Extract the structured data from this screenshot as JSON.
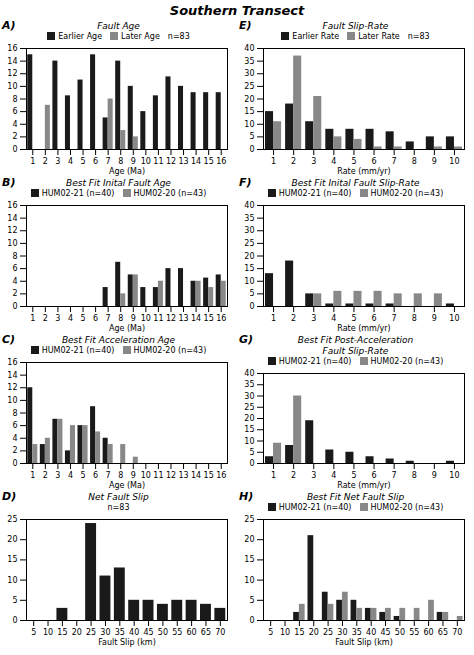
{
  "title": "Southern Transect",
  "chart_data": [
    {
      "type": "bar",
      "panel_label": "A)",
      "title": "Fault Age",
      "xlabel": "Age (Ma)",
      "categories": [
        1,
        2,
        3,
        4,
        5,
        6,
        7,
        8,
        9,
        10,
        11,
        12,
        13,
        14,
        15,
        16
      ],
      "series": [
        {
          "name": "Earlier Age",
          "color": "#1a1a1a",
          "values": [
            15,
            0,
            14,
            8.5,
            11,
            15,
            5,
            14,
            10,
            6,
            8.5,
            11.5,
            10,
            9,
            9,
            9
          ]
        },
        {
          "name": "Later Age",
          "color": "#888888",
          "values": [
            0,
            7,
            0,
            0,
            0,
            0,
            8,
            3,
            2,
            0,
            0,
            0,
            0,
            0,
            0,
            0
          ]
        }
      ],
      "annotations": [
        "n=83"
      ],
      "xlim": [
        0.5,
        16.5
      ],
      "xticks": [
        1,
        2,
        3,
        4,
        5,
        6,
        7,
        8,
        9,
        10,
        11,
        12,
        13,
        14,
        15,
        16
      ],
      "ylim": [
        0,
        16
      ],
      "yticks": [
        0,
        2,
        4,
        6,
        8,
        10,
        12,
        14,
        16
      ],
      "grid": false
    },
    {
      "type": "bar",
      "panel_label": "B)",
      "title": "Best Fit Inital Fault Age",
      "xlabel": "Age (Ma)",
      "categories": [
        1,
        2,
        3,
        4,
        5,
        6,
        7,
        8,
        9,
        10,
        11,
        12,
        13,
        14,
        15,
        16
      ],
      "series": [
        {
          "name": "HUM02-21 (n=40)",
          "color": "#1a1a1a",
          "values": [
            0,
            0,
            0,
            0,
            0,
            0,
            3,
            7,
            5,
            3,
            3,
            6,
            6,
            4,
            4.5,
            5
          ]
        },
        {
          "name": "HUM02-20 (n=43)",
          "color": "#888888",
          "values": [
            0,
            0,
            0,
            0,
            0,
            0,
            0,
            2,
            5,
            0,
            4,
            0,
            0,
            4,
            3,
            4
          ]
        }
      ],
      "xlim": [
        0.5,
        16.5
      ],
      "xticks": [
        1,
        2,
        3,
        4,
        5,
        6,
        7,
        8,
        9,
        10,
        11,
        12,
        13,
        14,
        15,
        16
      ],
      "ylim": [
        0,
        16
      ],
      "yticks": [
        0,
        2,
        4,
        6,
        8,
        10,
        12,
        14,
        16
      ],
      "grid": false
    },
    {
      "type": "bar",
      "panel_label": "C)",
      "title": "Best Fit Acceleration Age",
      "xlabel": "Age (Ma)",
      "categories": [
        1,
        2,
        3,
        4,
        5,
        6,
        7,
        8,
        9,
        10,
        11,
        12,
        13,
        14,
        15,
        16
      ],
      "series": [
        {
          "name": "HUM02-21 (n=40)",
          "color": "#1a1a1a",
          "values": [
            12,
            3,
            7,
            2,
            6,
            9,
            4,
            0,
            0,
            0,
            0,
            0,
            0,
            0,
            0,
            0
          ]
        },
        {
          "name": "HUM02-20 (n=43)",
          "color": "#888888",
          "values": [
            3,
            4,
            7,
            6,
            6,
            5,
            3,
            3,
            1,
            0,
            0,
            0,
            0,
            0,
            0,
            0
          ]
        }
      ],
      "xlim": [
        0.5,
        16.5
      ],
      "xticks": [
        1,
        2,
        3,
        4,
        5,
        6,
        7,
        8,
        9,
        10,
        11,
        12,
        13,
        14,
        15,
        16
      ],
      "ylim": [
        0,
        16
      ],
      "yticks": [
        0,
        2,
        4,
        6,
        8,
        10,
        12,
        14,
        16
      ],
      "grid": false
    },
    {
      "type": "bar",
      "panel_label": "D)",
      "title": "Net Fault Slip",
      "xlabel": "Fault Slip (km)",
      "categories": [
        5,
        10,
        15,
        20,
        25,
        30,
        35,
        40,
        45,
        50,
        55,
        60,
        65,
        70
      ],
      "series": [
        {
          "color": "#1a1a1a",
          "values": [
            0,
            0,
            3,
            0,
            24,
            11,
            13,
            5,
            5,
            4,
            5,
            5,
            4,
            3
          ]
        }
      ],
      "annotations": [
        "n=83"
      ],
      "xlim": [
        2.5,
        72.5
      ],
      "xticks": [
        5,
        10,
        15,
        20,
        25,
        30,
        35,
        40,
        45,
        50,
        55,
        60,
        65,
        70
      ],
      "ylim": [
        0,
        25
      ],
      "yticks": [
        0,
        5,
        10,
        15,
        20,
        25
      ],
      "grid": false
    },
    {
      "type": "bar",
      "panel_label": "E)",
      "title": "Fault Slip-Rate",
      "xlabel": "Rate (mm/yr)",
      "categories": [
        1,
        2,
        3,
        4,
        5,
        6,
        7,
        8,
        9,
        10
      ],
      "series": [
        {
          "name": "Earlier Rate",
          "color": "#1a1a1a",
          "values": [
            15,
            18,
            11,
            8,
            8,
            8,
            7,
            3,
            5,
            5
          ]
        },
        {
          "name": "Later Rate",
          "color": "#888888",
          "values": [
            11,
            37,
            21,
            5,
            4,
            1,
            1,
            0,
            1,
            1
          ]
        }
      ],
      "annotations": [
        "n=83"
      ],
      "xlim": [
        0.5,
        10.5
      ],
      "xticks": [
        1,
        2,
        3,
        4,
        5,
        6,
        7,
        8,
        9,
        10
      ],
      "ylim": [
        0,
        40
      ],
      "yticks": [
        0,
        5,
        10,
        15,
        20,
        25,
        30,
        35,
        40
      ],
      "grid": false
    },
    {
      "type": "bar",
      "panel_label": "F)",
      "title": "Best Fit Inital Fault Slip-Rate",
      "xlabel": "Rate (mm/yr)",
      "categories": [
        1,
        2,
        3,
        4,
        5,
        6,
        7,
        8,
        9,
        10
      ],
      "series": [
        {
          "name": "HUM02-21 (n=40)",
          "color": "#1a1a1a",
          "values": [
            13,
            18,
            5,
            1,
            1,
            1,
            1,
            0,
            0,
            1
          ]
        },
        {
          "name": "HUM02-20 (n=43)",
          "color": "#888888",
          "values": [
            0,
            0,
            5,
            6,
            6,
            6,
            5,
            5,
            5,
            0
          ]
        }
      ],
      "xlim": [
        0.5,
        10.5
      ],
      "xticks": [
        1,
        2,
        3,
        4,
        5,
        6,
        7,
        8,
        9,
        10
      ],
      "ylim": [
        0,
        40
      ],
      "yticks": [
        0,
        5,
        10,
        15,
        20,
        25,
        30,
        35,
        40
      ],
      "grid": false
    },
    {
      "type": "bar",
      "panel_label": "G)",
      "title": "Best Fit Post-Acceleration\nFault Slip-Rate",
      "xlabel": "Rate (mm/yr)",
      "categories": [
        1,
        2,
        3,
        4,
        5,
        6,
        7,
        8,
        9,
        10
      ],
      "series": [
        {
          "name": "HUM02-21 (n=40)",
          "color": "#1a1a1a",
          "values": [
            3,
            8,
            19,
            6,
            5,
            3,
            2,
            1,
            0,
            1
          ]
        },
        {
          "name": "HUM02-20 (n=43)",
          "color": "#888888",
          "values": [
            9,
            30,
            0,
            0,
            0,
            0,
            0,
            0,
            0,
            0
          ]
        }
      ],
      "xlim": [
        0.5,
        10.5
      ],
      "xticks": [
        1,
        2,
        3,
        4,
        5,
        6,
        7,
        8,
        9,
        10
      ],
      "ylim": [
        0,
        40
      ],
      "yticks": [
        0,
        5,
        10,
        15,
        20,
        25,
        30,
        35,
        40
      ],
      "grid": false
    },
    {
      "type": "bar",
      "panel_label": "H)",
      "title": "Best Fit Net Fault Slip",
      "xlabel": "Fault Slip (km)",
      "categories": [
        5,
        10,
        15,
        20,
        25,
        30,
        35,
        40,
        45,
        50,
        55,
        60,
        65,
        70
      ],
      "series": [
        {
          "name": "HUM02-21 (n=40)",
          "color": "#1a1a1a",
          "values": [
            0,
            0,
            2,
            21,
            7,
            5,
            5,
            3,
            2,
            1,
            0,
            0,
            2,
            0
          ]
        },
        {
          "name": "HUM02-20 (n=43)",
          "color": "#888888",
          "values": [
            0,
            0,
            4,
            0,
            4,
            7,
            3,
            3,
            3,
            3,
            3,
            5,
            2,
            1
          ]
        }
      ],
      "xlim": [
        2.5,
        72.5
      ],
      "xticks": [
        5,
        10,
        15,
        20,
        25,
        30,
        35,
        40,
        45,
        50,
        55,
        60,
        65,
        70
      ],
      "ylim": [
        0,
        25
      ],
      "yticks": [
        0,
        5,
        10,
        15,
        20,
        25
      ],
      "grid": false
    }
  ]
}
